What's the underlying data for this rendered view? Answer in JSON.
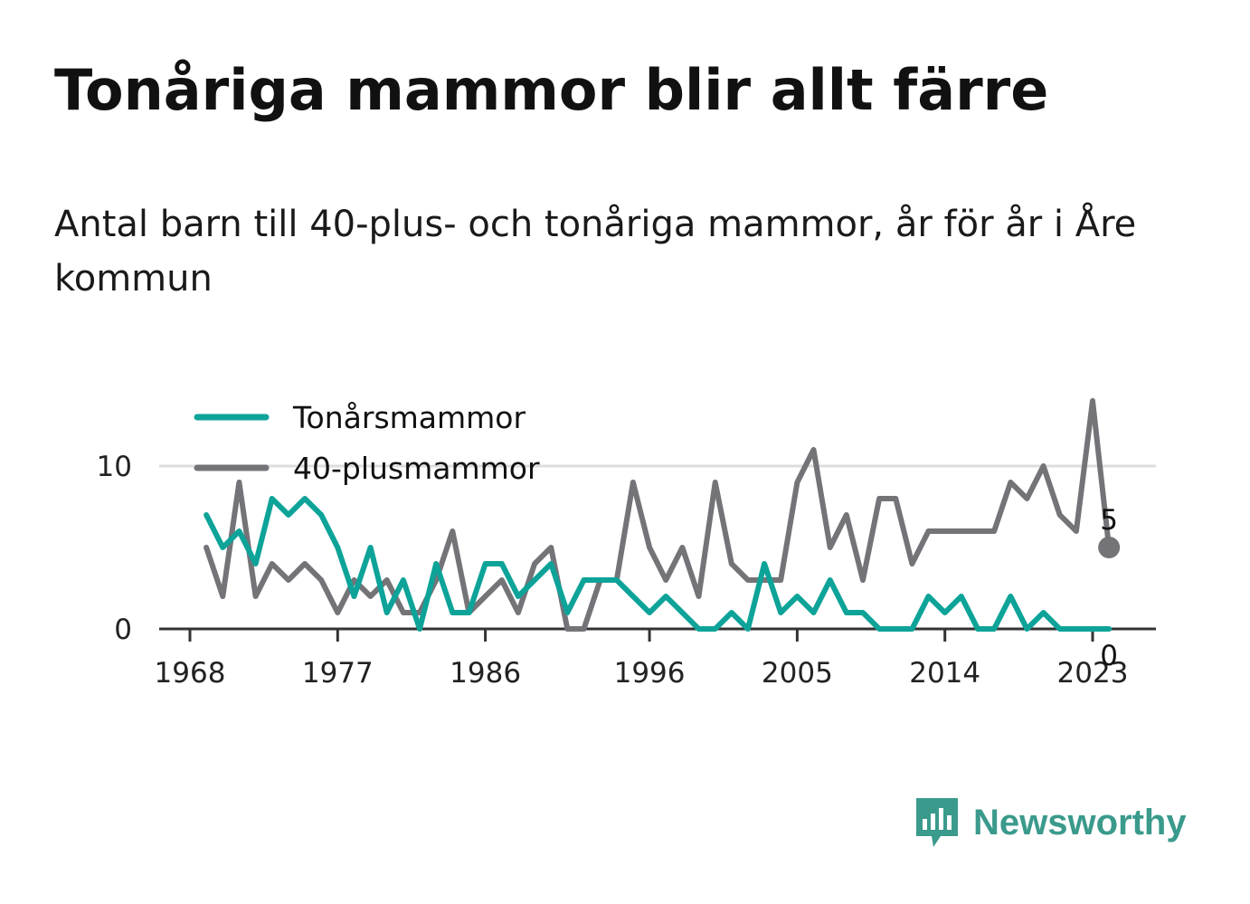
{
  "title": "Tonåriga mammor blir allt färre",
  "subtitle": "Antal barn till 40-plus- och tonåriga mammor, år för år i Åre kommun",
  "brand": {
    "name": "Newsworthy",
    "icon": "newsworthy-logo-icon",
    "color": "#3a9a8c"
  },
  "chart_data": {
    "type": "line",
    "x": [
      1969,
      1970,
      1971,
      1972,
      1973,
      1974,
      1975,
      1976,
      1977,
      1978,
      1979,
      1980,
      1981,
      1982,
      1983,
      1984,
      1985,
      1986,
      1987,
      1988,
      1989,
      1990,
      1991,
      1992,
      1993,
      1994,
      1995,
      1996,
      1997,
      1998,
      1999,
      2000,
      2001,
      2002,
      2003,
      2004,
      2005,
      2006,
      2007,
      2008,
      2009,
      2010,
      2011,
      2012,
      2013,
      2014,
      2015,
      2016,
      2017,
      2018,
      2019,
      2020,
      2021,
      2022,
      2023,
      2024
    ],
    "series": [
      {
        "name": "Tonårsmammor",
        "color": "#0da399",
        "values": [
          7,
          5,
          6,
          4,
          8,
          7,
          8,
          7,
          5,
          2,
          5,
          1,
          3,
          0,
          4,
          1,
          1,
          4,
          4,
          2,
          3,
          4,
          1,
          3,
          3,
          3,
          2,
          1,
          2,
          1,
          0,
          0,
          1,
          0,
          4,
          1,
          2,
          1,
          3,
          1,
          1,
          0,
          0,
          0,
          2,
          1,
          2,
          0,
          0,
          2,
          0,
          1,
          0,
          0,
          0,
          0
        ],
        "end_label": "0"
      },
      {
        "name": "40-plusmammor",
        "color": "#737378",
        "values": [
          5,
          2,
          9,
          2,
          4,
          3,
          4,
          3,
          1,
          3,
          2,
          3,
          1,
          1,
          3,
          6,
          1,
          2,
          3,
          1,
          4,
          5,
          0,
          0,
          3,
          3,
          9,
          5,
          3,
          5,
          2,
          9,
          4,
          3,
          3,
          3,
          9,
          11,
          5,
          7,
          3,
          8,
          8,
          4,
          6,
          6,
          6,
          6,
          6,
          9,
          8,
          10,
          7,
          6,
          14,
          5
        ],
        "end_label": "5"
      }
    ],
    "x_ticks": [
      1968,
      1977,
      1986,
      1996,
      2005,
      2014,
      2023
    ],
    "y_ticks": [
      0,
      10
    ],
    "xlim": [
      1967,
      2027
    ],
    "ylim": [
      0,
      10
    ],
    "grid": true,
    "legend_position": "top-left"
  }
}
